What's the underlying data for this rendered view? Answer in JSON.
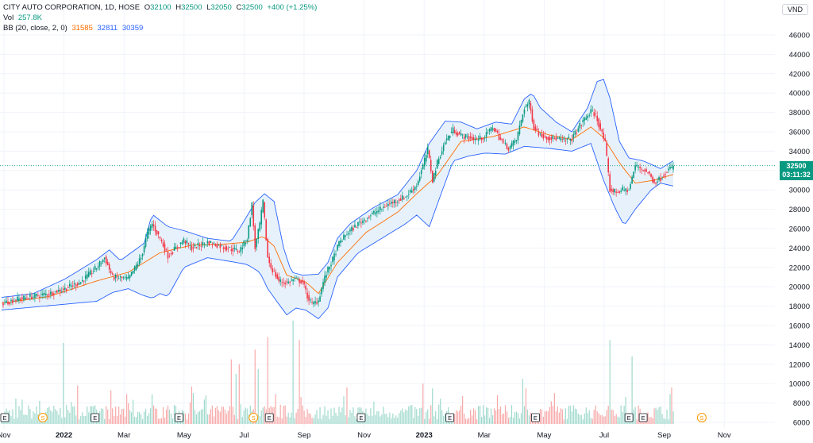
{
  "legend": {
    "symbol": "CITY AUTO CORPORATION, 1D, HOSE",
    "o_label": "O",
    "o": "32100",
    "h_label": "H",
    "h": "32500",
    "l_label": "L",
    "l": "32050",
    "c_label": "C",
    "c": "32500",
    "change": "+400 (+1.25%)",
    "vol_label": "Vol",
    "vol": "257.8K",
    "bb_label": "BB (20, close, 2, 0)",
    "bb_basis": "31585",
    "bb_upper": "32811",
    "bb_lower": "30359"
  },
  "currency": "VND",
  "last_price": {
    "price": "32500",
    "countdown": "03:11:32"
  },
  "colors": {
    "up": "#089981",
    "down": "#f23645",
    "bb_basis": "#ff6d00",
    "bb_band": "#2962ff",
    "bb_fill": "#e3effa",
    "grid": "#f0f3fa",
    "vol_up": "#9fd9cc",
    "vol_down": "#f7a9a9"
  },
  "chart_data": {
    "type": "candlestick",
    "y_axis": {
      "ylim": [
        6000,
        46000
      ],
      "ticks": [
        "46000",
        "44000",
        "42000",
        "40000",
        "38000",
        "36000",
        "34000",
        "32000",
        "30000",
        "28000",
        "26000",
        "24000",
        "22000",
        "20000",
        "18000",
        "16000",
        "14000",
        "12000",
        "10000",
        "8000",
        "6000"
      ]
    },
    "x_axis": {
      "ticks": [
        {
          "label": "Nov",
          "bold": false
        },
        {
          "label": "2022",
          "bold": true
        },
        {
          "label": "Mar",
          "bold": false
        },
        {
          "label": "May",
          "bold": false
        },
        {
          "label": "Jul",
          "bold": false
        },
        {
          "label": "Sep",
          "bold": false
        },
        {
          "label": "Nov",
          "bold": false
        },
        {
          "label": "2023",
          "bold": true
        },
        {
          "label": "Mar",
          "bold": false
        },
        {
          "label": "May",
          "bold": false
        },
        {
          "label": "Jul",
          "bold": false
        },
        {
          "label": "Sep",
          "bold": false
        },
        {
          "label": "Nov",
          "bold": false
        }
      ]
    },
    "price_path": [
      [
        0,
        18300
      ],
      [
        10,
        18700
      ],
      [
        20,
        19000
      ],
      [
        30,
        19300
      ],
      [
        40,
        19800
      ],
      [
        50,
        20500
      ],
      [
        60,
        22000
      ],
      [
        65,
        23000
      ],
      [
        70,
        21000
      ],
      [
        80,
        20800
      ],
      [
        88,
        23000
      ],
      [
        92,
        25500
      ],
      [
        95,
        26500
      ],
      [
        100,
        25000
      ],
      [
        105,
        23200
      ],
      [
        110,
        24000
      ],
      [
        115,
        24800
      ],
      [
        120,
        24000
      ],
      [
        130,
        24600
      ],
      [
        140,
        24100
      ],
      [
        150,
        23700
      ],
      [
        155,
        25000
      ],
      [
        158,
        28500
      ],
      [
        160,
        24000
      ],
      [
        163,
        26500
      ],
      [
        165,
        28800
      ],
      [
        168,
        23000
      ],
      [
        170,
        22000
      ],
      [
        175,
        20600
      ],
      [
        180,
        20400
      ],
      [
        185,
        20800
      ],
      [
        190,
        20500
      ],
      [
        193,
        19000
      ],
      [
        196,
        18200
      ],
      [
        200,
        18600
      ],
      [
        203,
        20500
      ],
      [
        206,
        21800
      ],
      [
        209,
        22800
      ],
      [
        213,
        24500
      ],
      [
        218,
        25500
      ],
      [
        225,
        26500
      ],
      [
        235,
        27600
      ],
      [
        245,
        28600
      ],
      [
        255,
        29300
      ],
      [
        262,
        30500
      ],
      [
        266,
        32500
      ],
      [
        269,
        34200
      ],
      [
        272,
        31000
      ],
      [
        275,
        32800
      ],
      [
        280,
        35000
      ],
      [
        285,
        36200
      ],
      [
        290,
        35600
      ],
      [
        300,
        35200
      ],
      [
        305,
        35500
      ],
      [
        310,
        36500
      ],
      [
        315,
        35200
      ],
      [
        320,
        34300
      ],
      [
        325,
        35200
      ],
      [
        330,
        38500
      ],
      [
        333,
        39000
      ],
      [
        336,
        36500
      ],
      [
        340,
        35700
      ],
      [
        345,
        35400
      ],
      [
        350,
        35300
      ],
      [
        355,
        35100
      ],
      [
        360,
        35300
      ],
      [
        364,
        36400
      ],
      [
        368,
        37300
      ],
      [
        372,
        38100
      ],
      [
        375,
        37700
      ],
      [
        378,
        36300
      ],
      [
        381,
        34800
      ],
      [
        384,
        30000
      ],
      [
        388,
        29800
      ],
      [
        392,
        30000
      ],
      [
        396,
        30000
      ],
      [
        400,
        32500
      ],
      [
        404,
        32200
      ],
      [
        408,
        31800
      ],
      [
        412,
        30800
      ],
      [
        416,
        31200
      ],
      [
        420,
        32000
      ],
      [
        424,
        32400
      ]
    ],
    "last_index": 424,
    "bb_upper_path": [
      [
        0,
        18900
      ],
      [
        20,
        19300
      ],
      [
        40,
        20800
      ],
      [
        60,
        22800
      ],
      [
        68,
        23800
      ],
      [
        75,
        22700
      ],
      [
        90,
        24500
      ],
      [
        95,
        27500
      ],
      [
        105,
        26200
      ],
      [
        115,
        25800
      ],
      [
        130,
        25000
      ],
      [
        145,
        24700
      ],
      [
        152,
        26500
      ],
      [
        160,
        28700
      ],
      [
        166,
        29600
      ],
      [
        172,
        28800
      ],
      [
        178,
        24000
      ],
      [
        183,
        21500
      ],
      [
        190,
        21200
      ],
      [
        200,
        21300
      ],
      [
        206,
        22500
      ],
      [
        212,
        25000
      ],
      [
        220,
        26500
      ],
      [
        235,
        28200
      ],
      [
        250,
        29500
      ],
      [
        262,
        32000
      ],
      [
        270,
        34800
      ],
      [
        280,
        37100
      ],
      [
        290,
        37000
      ],
      [
        300,
        36300
      ],
      [
        312,
        37000
      ],
      [
        322,
        36800
      ],
      [
        330,
        39400
      ],
      [
        335,
        40000
      ],
      [
        340,
        38500
      ],
      [
        350,
        37000
      ],
      [
        360,
        36000
      ],
      [
        370,
        38500
      ],
      [
        376,
        41200
      ],
      [
        380,
        41400
      ],
      [
        384,
        39500
      ],
      [
        390,
        35000
      ],
      [
        396,
        33300
      ],
      [
        405,
        33000
      ],
      [
        416,
        32200
      ],
      [
        424,
        33000
      ]
    ],
    "bb_lower_path": [
      [
        0,
        17600
      ],
      [
        20,
        17900
      ],
      [
        40,
        18200
      ],
      [
        60,
        18500
      ],
      [
        70,
        19400
      ],
      [
        80,
        19800
      ],
      [
        88,
        19200
      ],
      [
        95,
        18800
      ],
      [
        100,
        19300
      ],
      [
        105,
        19000
      ],
      [
        115,
        22000
      ],
      [
        130,
        23000
      ],
      [
        145,
        22600
      ],
      [
        155,
        22300
      ],
      [
        163,
        21500
      ],
      [
        168,
        19800
      ],
      [
        175,
        18200
      ],
      [
        180,
        17100
      ],
      [
        186,
        17800
      ],
      [
        192,
        17600
      ],
      [
        200,
        16700
      ],
      [
        206,
        17800
      ],
      [
        212,
        21000
      ],
      [
        225,
        23500
      ],
      [
        240,
        25000
      ],
      [
        255,
        26500
      ],
      [
        262,
        27400
      ],
      [
        270,
        26200
      ],
      [
        275,
        28500
      ],
      [
        285,
        33000
      ],
      [
        295,
        33500
      ],
      [
        305,
        33800
      ],
      [
        318,
        33700
      ],
      [
        330,
        34500
      ],
      [
        345,
        34300
      ],
      [
        360,
        34000
      ],
      [
        372,
        34800
      ],
      [
        380,
        31000
      ],
      [
        387,
        28200
      ],
      [
        393,
        26300
      ],
      [
        400,
        28000
      ],
      [
        410,
        30000
      ],
      [
        416,
        30700
      ],
      [
        424,
        30400
      ]
    ],
    "bb_basis_path": [
      [
        0,
        18300
      ],
      [
        30,
        19000
      ],
      [
        60,
        20600
      ],
      [
        80,
        21500
      ],
      [
        100,
        23500
      ],
      [
        120,
        24300
      ],
      [
        140,
        24400
      ],
      [
        155,
        24600
      ],
      [
        165,
        25200
      ],
      [
        172,
        24200
      ],
      [
        180,
        21200
      ],
      [
        192,
        20500
      ],
      [
        200,
        19300
      ],
      [
        212,
        22500
      ],
      [
        230,
        25600
      ],
      [
        250,
        27700
      ],
      [
        262,
        29600
      ],
      [
        275,
        31500
      ],
      [
        290,
        35000
      ],
      [
        310,
        35500
      ],
      [
        330,
        36500
      ],
      [
        345,
        35700
      ],
      [
        360,
        35200
      ],
      [
        372,
        36500
      ],
      [
        380,
        35400
      ],
      [
        390,
        32800
      ],
      [
        400,
        30700
      ],
      [
        412,
        31000
      ],
      [
        424,
        31600
      ]
    ],
    "volume_spikes": [
      [
        39,
        14200,
        1
      ],
      [
        48,
        9800,
        0
      ],
      [
        120,
        9700,
        0
      ],
      [
        145,
        12500,
        0
      ],
      [
        148,
        11000,
        1
      ],
      [
        150,
        12000,
        0
      ],
      [
        160,
        13500,
        0
      ],
      [
        162,
        11500,
        1
      ],
      [
        168,
        14800,
        0
      ],
      [
        184,
        16500,
        1
      ],
      [
        188,
        14500,
        0
      ],
      [
        218,
        9600,
        0
      ],
      [
        266,
        10000,
        0
      ],
      [
        272,
        9500,
        1
      ],
      [
        329,
        10500,
        1
      ],
      [
        331,
        9500,
        0
      ],
      [
        384,
        14500,
        1
      ],
      [
        398,
        12800,
        1
      ],
      [
        423,
        9600,
        0
      ]
    ],
    "event_markers": [
      {
        "type": "E",
        "i": 1
      },
      {
        "type": "S",
        "i": 25
      },
      {
        "type": "E",
        "i": 58
      },
      {
        "type": "E",
        "i": 111
      },
      {
        "type": "S",
        "i": 158
      },
      {
        "type": "E",
        "i": 168
      },
      {
        "type": "E",
        "i": 226
      },
      {
        "type": "E",
        "i": 282
      },
      {
        "type": "E",
        "i": 336
      },
      {
        "type": "E",
        "i": 395
      },
      {
        "type": "E",
        "i": 404
      },
      {
        "type": "S",
        "i": 441
      }
    ]
  }
}
